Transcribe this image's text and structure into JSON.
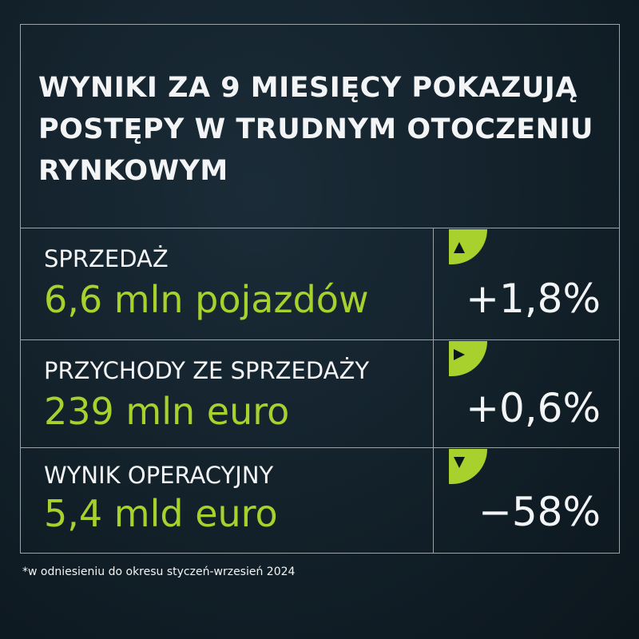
{
  "header": {
    "title": "WYNIKI ZA 9 MIESIĘCY POKAZUJĄ POSTĘPY W TRUDNYM OTOCZENIU RYNKOWYM"
  },
  "rows": [
    {
      "label": "SPRZEDAŻ",
      "value": "6,6 mln pojazdów",
      "change": "+1,8%"
    },
    {
      "label": "PRZYCHODY ZE SPRZEDAŻY",
      "value": "239 mln euro",
      "change": "+0,6%"
    },
    {
      "label": "WYNIK OPERACYJNY",
      "value": "5,4 mld euro",
      "change": "−58%"
    }
  ],
  "footnote": "*w odniesieniu do okresu styczeń-wrzesień 2024"
}
